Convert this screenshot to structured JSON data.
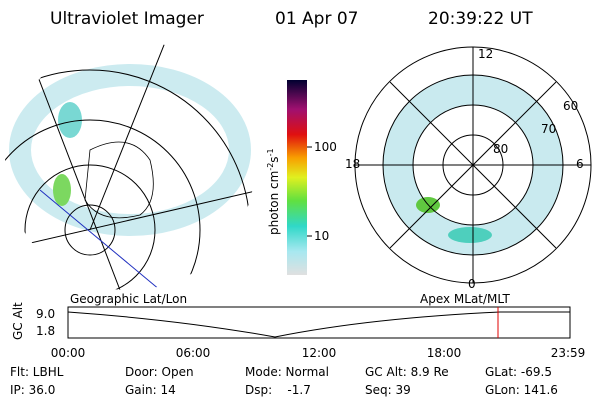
{
  "header": {
    "title": "Ultraviolet Imager",
    "date": "01 Apr 07",
    "time": "20:39:22 UT"
  },
  "polar_plot": {
    "labels": {
      "top": "12",
      "left": "18",
      "right": "6",
      "bottom": "0"
    },
    "rings": [
      "60",
      "70",
      "80"
    ]
  },
  "colorbar": {
    "label_parts": [
      "photon cm",
      "-2",
      "s",
      "-1"
    ],
    "ticks": [
      "100",
      "10"
    ]
  },
  "timeline": {
    "left_title": "Geographic Lat/Lon",
    "right_title": "Apex MLat/MLT",
    "axis_label": "GC Alt",
    "y_ticks": [
      "9.0",
      "1.8"
    ],
    "x_ticks": [
      "00:00",
      "06:00",
      "12:00",
      "18:00",
      "23:59"
    ]
  },
  "info": {
    "rows": [
      [
        "Flt: LBHL",
        "Door: Open",
        "Mode: Normal",
        "GC Alt: 8.9 Re",
        "GLat: -69.5"
      ],
      [
        "IP: 36.0",
        "Gain: 14",
        "Dsp:    -1.7",
        "Seq: 39",
        "GLon: 141.6"
      ]
    ]
  }
}
